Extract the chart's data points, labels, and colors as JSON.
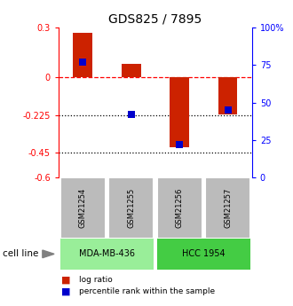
{
  "title": "GDS825 / 7895",
  "samples": [
    "GSM21254",
    "GSM21255",
    "GSM21256",
    "GSM21257"
  ],
  "log_ratios": [
    0.27,
    0.08,
    -0.42,
    -0.22
  ],
  "percentile_ranks": [
    77,
    42,
    22,
    45
  ],
  "cell_lines": [
    {
      "label": "MDA-MB-436",
      "samples": [
        0,
        1
      ],
      "color": "#99ee99"
    },
    {
      "label": "HCC 1954",
      "samples": [
        2,
        3
      ],
      "color": "#44cc44"
    }
  ],
  "ylim_left": [
    -0.6,
    0.3
  ],
  "ylim_right": [
    0,
    100
  ],
  "yticks_left": [
    0.3,
    0,
    -0.225,
    -0.45,
    -0.6
  ],
  "ytick_labels_left": [
    "0.3",
    "0",
    "-0.225",
    "-0.45",
    "-0.6"
  ],
  "yticks_right": [
    100,
    75,
    50,
    25,
    0
  ],
  "ytick_labels_right": [
    "100%",
    "75",
    "50",
    "25",
    "0"
  ],
  "hlines": [
    0,
    -0.225,
    -0.45
  ],
  "hline_styles": [
    "dashed",
    "dotted",
    "dotted"
  ],
  "hline_colors": [
    "red",
    "black",
    "black"
  ],
  "bar_color": "#cc2200",
  "dot_color": "#0000cc",
  "bar_width": 0.4,
  "dot_size": 30,
  "sample_label_row_color": "#bbbbbb",
  "cell_line_label": "cell line",
  "legend_items": [
    {
      "color": "#cc2200",
      "label": "log ratio"
    },
    {
      "color": "#0000cc",
      "label": "percentile rank within the sample"
    }
  ]
}
